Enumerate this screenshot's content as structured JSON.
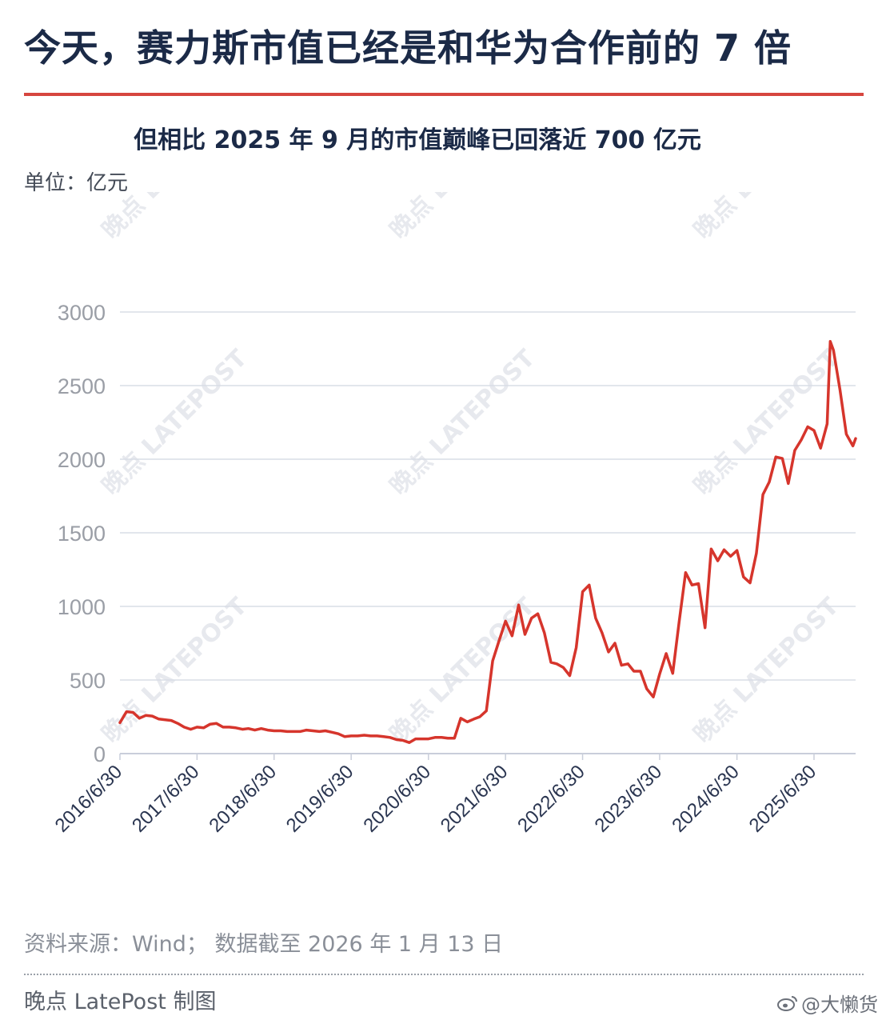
{
  "headline": "今天，赛力斯市值已经是和华为合作前的 7 倍",
  "subtitle": "但相比 2025 年 9 月的市值巅峰已回落近 700 亿元",
  "unit_label": "单位：亿元",
  "source": "资料来源：Wind； 数据截至 2026 年 1 月 13 日",
  "credit": "晚点 LatePost 制图",
  "weibo_handle": "@大懒货",
  "watermark": "晚点 LATEPOST",
  "colors": {
    "line": "#d6352c",
    "title": "#1b2a47",
    "rule": "#d6463f",
    "grid": "#d9dde6"
  },
  "chart_data": {
    "type": "line",
    "title": "但相比 2025 年 9 月的市值巅峰已回落近 700 亿元",
    "ylabel": "单位：亿元",
    "ylim": [
      0,
      3000
    ],
    "yticks": [
      0,
      500,
      1000,
      1500,
      2000,
      2500,
      3000
    ],
    "xticks": [
      "2016/6/30",
      "2017/6/30",
      "2018/6/30",
      "2019/6/30",
      "2020/6/30",
      "2021/6/30",
      "2022/6/30",
      "2023/6/30",
      "2024/6/30",
      "2025/6/30"
    ],
    "grid": true,
    "series": [
      {
        "values": [
          {
            "x": "2016-06-30",
            "y": 210
          },
          {
            "x": "2016-07-31",
            "y": 285
          },
          {
            "x": "2016-08-31",
            "y": 280
          },
          {
            "x": "2016-09-30",
            "y": 240
          },
          {
            "x": "2016-10-31",
            "y": 260
          },
          {
            "x": "2016-11-30",
            "y": 255
          },
          {
            "x": "2016-12-31",
            "y": 235
          },
          {
            "x": "2017-01-31",
            "y": 230
          },
          {
            "x": "2017-02-28",
            "y": 225
          },
          {
            "x": "2017-03-31",
            "y": 205
          },
          {
            "x": "2017-04-30",
            "y": 180
          },
          {
            "x": "2017-05-31",
            "y": 165
          },
          {
            "x": "2017-06-30",
            "y": 180
          },
          {
            "x": "2017-07-31",
            "y": 175
          },
          {
            "x": "2017-08-31",
            "y": 200
          },
          {
            "x": "2017-09-30",
            "y": 205
          },
          {
            "x": "2017-10-31",
            "y": 180
          },
          {
            "x": "2017-11-30",
            "y": 180
          },
          {
            "x": "2017-12-31",
            "y": 175
          },
          {
            "x": "2018-01-31",
            "y": 165
          },
          {
            "x": "2018-02-28",
            "y": 170
          },
          {
            "x": "2018-03-31",
            "y": 160
          },
          {
            "x": "2018-04-30",
            "y": 170
          },
          {
            "x": "2018-05-31",
            "y": 160
          },
          {
            "x": "2018-06-30",
            "y": 155
          },
          {
            "x": "2018-07-31",
            "y": 155
          },
          {
            "x": "2018-08-31",
            "y": 150
          },
          {
            "x": "2018-09-30",
            "y": 150
          },
          {
            "x": "2018-10-31",
            "y": 150
          },
          {
            "x": "2018-11-30",
            "y": 160
          },
          {
            "x": "2018-12-31",
            "y": 155
          },
          {
            "x": "2019-01-31",
            "y": 150
          },
          {
            "x": "2019-02-28",
            "y": 155
          },
          {
            "x": "2019-03-31",
            "y": 145
          },
          {
            "x": "2019-04-30",
            "y": 135
          },
          {
            "x": "2019-05-31",
            "y": 115
          },
          {
            "x": "2019-06-30",
            "y": 120
          },
          {
            "x": "2019-07-31",
            "y": 120
          },
          {
            "x": "2019-08-31",
            "y": 125
          },
          {
            "x": "2019-09-30",
            "y": 120
          },
          {
            "x": "2019-10-31",
            "y": 120
          },
          {
            "x": "2019-11-30",
            "y": 115
          },
          {
            "x": "2019-12-31",
            "y": 110
          },
          {
            "x": "2020-01-31",
            "y": 95
          },
          {
            "x": "2020-02-29",
            "y": 90
          },
          {
            "x": "2020-03-31",
            "y": 75
          },
          {
            "x": "2020-04-30",
            "y": 100
          },
          {
            "x": "2020-05-31",
            "y": 100
          },
          {
            "x": "2020-06-30",
            "y": 100
          },
          {
            "x": "2020-07-31",
            "y": 110
          },
          {
            "x": "2020-08-31",
            "y": 110
          },
          {
            "x": "2020-09-30",
            "y": 105
          },
          {
            "x": "2020-10-31",
            "y": 105
          },
          {
            "x": "2020-11-30",
            "y": 240
          },
          {
            "x": "2020-12-31",
            "y": 215
          },
          {
            "x": "2021-01-31",
            "y": 235
          },
          {
            "x": "2021-02-28",
            "y": 250
          },
          {
            "x": "2021-03-31",
            "y": 290
          },
          {
            "x": "2021-04-30",
            "y": 630
          },
          {
            "x": "2021-05-31",
            "y": 770
          },
          {
            "x": "2021-06-30",
            "y": 900
          },
          {
            "x": "2021-07-31",
            "y": 800
          },
          {
            "x": "2021-08-31",
            "y": 1010
          },
          {
            "x": "2021-09-30",
            "y": 810
          },
          {
            "x": "2021-10-31",
            "y": 920
          },
          {
            "x": "2021-11-30",
            "y": 950
          },
          {
            "x": "2021-12-31",
            "y": 820
          },
          {
            "x": "2022-01-31",
            "y": 620
          },
          {
            "x": "2022-02-28",
            "y": 610
          },
          {
            "x": "2022-03-31",
            "y": 585
          },
          {
            "x": "2022-04-30",
            "y": 530
          },
          {
            "x": "2022-05-31",
            "y": 720
          },
          {
            "x": "2022-06-30",
            "y": 1100
          },
          {
            "x": "2022-07-31",
            "y": 1145
          },
          {
            "x": "2022-08-31",
            "y": 920
          },
          {
            "x": "2022-09-30",
            "y": 820
          },
          {
            "x": "2022-10-31",
            "y": 690
          },
          {
            "x": "2022-11-30",
            "y": 750
          },
          {
            "x": "2022-12-31",
            "y": 600
          },
          {
            "x": "2023-01-31",
            "y": 610
          },
          {
            "x": "2023-02-28",
            "y": 560
          },
          {
            "x": "2023-03-31",
            "y": 560
          },
          {
            "x": "2023-04-30",
            "y": 440
          },
          {
            "x": "2023-05-31",
            "y": 385
          },
          {
            "x": "2023-06-30",
            "y": 540
          },
          {
            "x": "2023-07-31",
            "y": 680
          },
          {
            "x": "2023-08-31",
            "y": 545
          },
          {
            "x": "2023-09-30",
            "y": 890
          },
          {
            "x": "2023-10-31",
            "y": 1230
          },
          {
            "x": "2023-11-30",
            "y": 1145
          },
          {
            "x": "2023-12-31",
            "y": 1155
          },
          {
            "x": "2024-01-31",
            "y": 855
          },
          {
            "x": "2024-02-29",
            "y": 1390
          },
          {
            "x": "2024-03-31",
            "y": 1310
          },
          {
            "x": "2024-04-30",
            "y": 1385
          },
          {
            "x": "2024-05-31",
            "y": 1340
          },
          {
            "x": "2024-06-30",
            "y": 1380
          },
          {
            "x": "2024-07-31",
            "y": 1200
          },
          {
            "x": "2024-08-31",
            "y": 1160
          },
          {
            "x": "2024-09-30",
            "y": 1360
          },
          {
            "x": "2024-10-31",
            "y": 1760
          },
          {
            "x": "2024-11-30",
            "y": 1845
          },
          {
            "x": "2024-12-31",
            "y": 2015
          },
          {
            "x": "2025-01-31",
            "y": 2005
          },
          {
            "x": "2025-02-28",
            "y": 1835
          },
          {
            "x": "2025-03-31",
            "y": 2060
          },
          {
            "x": "2025-04-30",
            "y": 2130
          },
          {
            "x": "2025-05-31",
            "y": 2220
          },
          {
            "x": "2025-06-30",
            "y": 2195
          },
          {
            "x": "2025-07-31",
            "y": 2075
          },
          {
            "x": "2025-08-31",
            "y": 2240
          },
          {
            "x": "2025-09-15",
            "y": 2800
          },
          {
            "x": "2025-09-30",
            "y": 2740
          },
          {
            "x": "2025-10-31",
            "y": 2470
          },
          {
            "x": "2025-11-30",
            "y": 2170
          },
          {
            "x": "2025-12-31",
            "y": 2090
          },
          {
            "x": "2026-01-13",
            "y": 2140
          }
        ]
      }
    ]
  }
}
